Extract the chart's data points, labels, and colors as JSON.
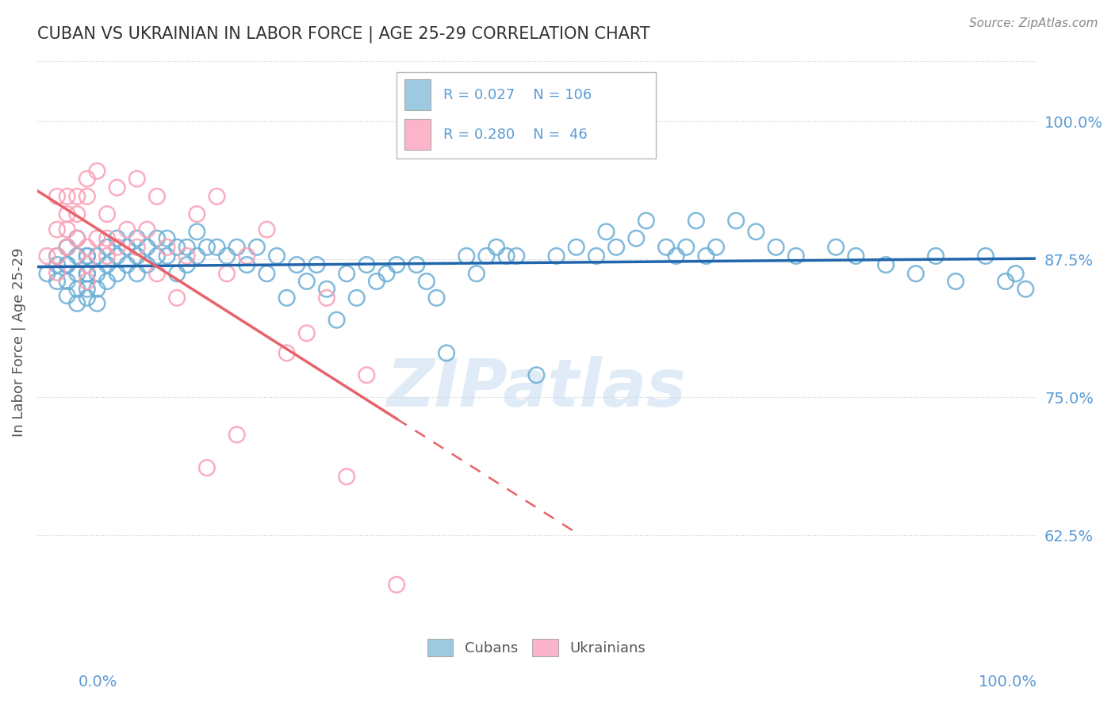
{
  "title": "CUBAN VS UKRAINIAN IN LABOR FORCE | AGE 25-29 CORRELATION CHART",
  "source_text": "Source: ZipAtlas.com",
  "ylabel": "In Labor Force | Age 25-29",
  "ytick_labels": [
    "62.5%",
    "75.0%",
    "87.5%",
    "100.0%"
  ],
  "ytick_values": [
    0.625,
    0.75,
    0.875,
    1.0
  ],
  "xlim": [
    0.0,
    1.0
  ],
  "ylim": [
    0.54,
    1.06
  ],
  "blue_R": 0.027,
  "blue_N": 106,
  "pink_R": 0.28,
  "pink_N": 46,
  "blue_color": "#6baed6",
  "pink_color": "#fa9fb5",
  "blue_line_color": "#2166ac",
  "pink_line_color": "#e8626a",
  "grid_color": "#cccccc",
  "axis_label_color": "#5b9bd5",
  "watermark_color": "#c6dbef",
  "legend_color_blue": "#9ecae1",
  "legend_color_pink": "#fbb4c9",
  "blue_scatter_x": [
    0.01,
    0.02,
    0.02,
    0.02,
    0.03,
    0.03,
    0.03,
    0.03,
    0.03,
    0.03,
    0.04,
    0.04,
    0.04,
    0.04,
    0.04,
    0.05,
    0.05,
    0.05,
    0.05,
    0.05,
    0.05,
    0.06,
    0.06,
    0.06,
    0.06,
    0.07,
    0.07,
    0.07,
    0.08,
    0.08,
    0.08,
    0.09,
    0.09,
    0.1,
    0.1,
    0.1,
    0.11,
    0.11,
    0.12,
    0.12,
    0.13,
    0.13,
    0.14,
    0.14,
    0.15,
    0.15,
    0.16,
    0.16,
    0.17,
    0.18,
    0.19,
    0.2,
    0.21,
    0.22,
    0.23,
    0.24,
    0.25,
    0.26,
    0.27,
    0.28,
    0.29,
    0.3,
    0.31,
    0.32,
    0.33,
    0.34,
    0.35,
    0.36,
    0.38,
    0.39,
    0.4,
    0.41,
    0.43,
    0.44,
    0.45,
    0.46,
    0.47,
    0.48,
    0.5,
    0.52,
    0.54,
    0.56,
    0.57,
    0.58,
    0.6,
    0.61,
    0.63,
    0.64,
    0.65,
    0.66,
    0.67,
    0.68,
    0.7,
    0.72,
    0.74,
    0.76,
    0.8,
    0.82,
    0.85,
    0.88,
    0.9,
    0.92,
    0.95,
    0.97,
    0.98,
    0.99
  ],
  "blue_scatter_y": [
    0.862,
    0.878,
    0.855,
    0.87,
    0.886,
    0.87,
    0.855,
    0.842,
    0.886,
    0.87,
    0.894,
    0.878,
    0.862,
    0.848,
    0.835,
    0.878,
    0.862,
    0.848,
    0.878,
    0.862,
    0.84,
    0.878,
    0.862,
    0.848,
    0.835,
    0.886,
    0.87,
    0.855,
    0.894,
    0.878,
    0.862,
    0.886,
    0.87,
    0.894,
    0.878,
    0.862,
    0.886,
    0.87,
    0.894,
    0.878,
    0.894,
    0.878,
    0.886,
    0.862,
    0.886,
    0.87,
    0.9,
    0.878,
    0.886,
    0.886,
    0.878,
    0.886,
    0.87,
    0.886,
    0.862,
    0.878,
    0.84,
    0.87,
    0.855,
    0.87,
    0.848,
    0.82,
    0.862,
    0.84,
    0.87,
    0.855,
    0.862,
    0.87,
    0.87,
    0.855,
    0.84,
    0.79,
    0.878,
    0.862,
    0.878,
    0.886,
    0.878,
    0.878,
    0.77,
    0.878,
    0.886,
    0.878,
    0.9,
    0.886,
    0.894,
    0.91,
    0.886,
    0.878,
    0.886,
    0.91,
    0.878,
    0.886,
    0.91,
    0.9,
    0.886,
    0.878,
    0.886,
    0.878,
    0.87,
    0.862,
    0.878,
    0.855,
    0.878,
    0.855,
    0.862,
    0.848
  ],
  "pink_scatter_x": [
    0.01,
    0.02,
    0.02,
    0.02,
    0.02,
    0.03,
    0.03,
    0.03,
    0.03,
    0.04,
    0.04,
    0.04,
    0.05,
    0.05,
    0.05,
    0.05,
    0.05,
    0.06,
    0.06,
    0.07,
    0.07,
    0.07,
    0.08,
    0.08,
    0.09,
    0.1,
    0.1,
    0.11,
    0.12,
    0.12,
    0.13,
    0.14,
    0.15,
    0.16,
    0.17,
    0.18,
    0.19,
    0.2,
    0.21,
    0.23,
    0.25,
    0.27,
    0.29,
    0.31,
    0.33,
    0.36
  ],
  "pink_scatter_y": [
    0.878,
    0.932,
    0.902,
    0.878,
    0.863,
    0.916,
    0.932,
    0.902,
    0.886,
    0.932,
    0.916,
    0.894,
    0.948,
    0.932,
    0.886,
    0.87,
    0.855,
    0.955,
    0.894,
    0.916,
    0.894,
    0.878,
    0.94,
    0.886,
    0.902,
    0.948,
    0.886,
    0.902,
    0.932,
    0.862,
    0.886,
    0.84,
    0.878,
    0.916,
    0.686,
    0.932,
    0.862,
    0.716,
    0.878,
    0.902,
    0.79,
    0.808,
    0.84,
    0.678,
    0.77,
    0.58
  ],
  "figsize": [
    14.06,
    8.92
  ],
  "dpi": 100
}
